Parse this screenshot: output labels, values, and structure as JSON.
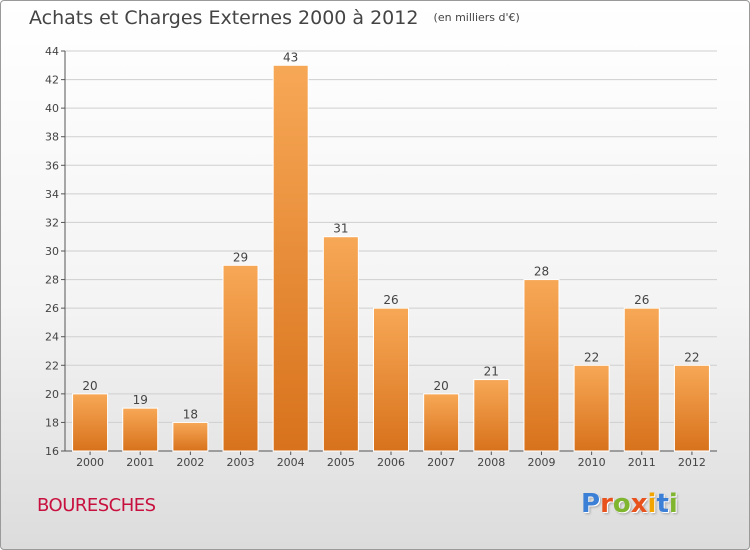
{
  "header": {
    "title": "Achats et Charges Externes 2000 à 2012",
    "subtitle": "(en milliers d'€)"
  },
  "footer": {
    "commune": "BOURESCHES",
    "brand": "Proxiti",
    "brand_colors": [
      "#3b7fd6",
      "#e8531d",
      "#7fb52f",
      "#e8531d",
      "#f2a400",
      "#3b7fd6",
      "#7fb52f"
    ]
  },
  "colors": {
    "bar_light": "#f7a856",
    "bar_dark": "#d8721c",
    "axis": "#555555",
    "grid": "#cfcfcf",
    "text": "#444444",
    "commune": "#c8103e"
  },
  "chart_data": {
    "type": "bar",
    "title": "Achats et Charges Externes 2000 à 2012",
    "subtitle": "(en milliers d'€)",
    "categories": [
      "2000",
      "2001",
      "2002",
      "2003",
      "2004",
      "2005",
      "2006",
      "2007",
      "2008",
      "2009",
      "2010",
      "2011",
      "2012"
    ],
    "values": [
      20,
      19,
      18,
      29,
      43,
      31,
      26,
      20,
      21,
      28,
      22,
      26,
      22
    ],
    "ylim": [
      16,
      44
    ],
    "yticks": [
      16,
      18,
      20,
      22,
      24,
      26,
      28,
      30,
      32,
      34,
      36,
      38,
      40,
      42,
      44
    ],
    "grid": true,
    "data_labels": true
  }
}
